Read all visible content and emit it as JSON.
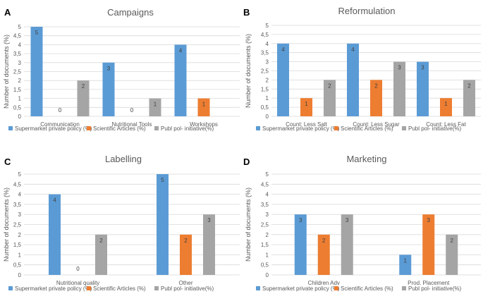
{
  "colors": {
    "supermarket": "#5b9bd5",
    "scientific": "#ed7d31",
    "public": "#a5a5a5",
    "grid": "#d9d9d9",
    "text": "#595959"
  },
  "chart_data": [
    {
      "panel": "A",
      "type": "bar",
      "title": "Campaigns",
      "ylabel": "Number of documents (%)",
      "ylim": [
        0,
        5
      ],
      "yticks": [
        "0",
        "0,5",
        "1",
        "1,5",
        "2",
        "2,5",
        "3",
        "3,5",
        "4",
        "4,5",
        "5"
      ],
      "categories": [
        "Communication",
        "Nutritional Tools",
        "Workshops"
      ],
      "series": [
        {
          "name": "Supermarket private policy (%)",
          "values": [
            5,
            3,
            4
          ]
        },
        {
          "name": "Scientific Articles (%)",
          "values": [
            0,
            0,
            1
          ]
        },
        {
          "name": "Publ pol- initiative(%)",
          "values": [
            2,
            1,
            null
          ]
        }
      ]
    },
    {
      "panel": "B",
      "type": "bar",
      "title": "Reformulation",
      "ylabel": "Number of documents (%)",
      "ylim": [
        0,
        5
      ],
      "yticks": [
        "0",
        "0,5",
        "1",
        "1,5",
        "2",
        "2,5",
        "3",
        "3,5",
        "4",
        "4,5",
        "5"
      ],
      "categories": [
        "Count: Less Salt",
        "Count: Less Sugar",
        "Count: Less Fat"
      ],
      "series": [
        {
          "name": "Supermarket private policy (%)",
          "values": [
            4,
            4,
            3
          ]
        },
        {
          "name": "Scientific Articles (%)",
          "values": [
            1,
            2,
            1
          ]
        },
        {
          "name": "Publ pol- initiative(%)",
          "values": [
            2,
            3,
            2
          ]
        }
      ]
    },
    {
      "panel": "C",
      "type": "bar",
      "title": "Labelling",
      "ylabel": "Number of documents (%)",
      "ylim": [
        0,
        5
      ],
      "yticks": [
        "0",
        "0,5",
        "1",
        "1,5",
        "2",
        "2,5",
        "3",
        "3,5",
        "4",
        "4,5",
        "5"
      ],
      "categories": [
        "Nutritional quality",
        "Other"
      ],
      "series": [
        {
          "name": "Supermarket private policy (%)",
          "values": [
            4,
            5
          ]
        },
        {
          "name": "Scientific Articles (%)",
          "values": [
            0,
            2
          ]
        },
        {
          "name": "Publ pol- initiative(%)",
          "values": [
            2,
            3
          ]
        }
      ]
    },
    {
      "panel": "D",
      "type": "bar",
      "title": "Marketing",
      "ylabel": "Number of documents (%)",
      "ylim": [
        0,
        5
      ],
      "yticks": [
        "0",
        "0,5",
        "1",
        "1,5",
        "2",
        "2,5",
        "3",
        "3,5",
        "4",
        "4,5",
        "5"
      ],
      "categories": [
        "Children Adv",
        "Prod. Placement"
      ],
      "series": [
        {
          "name": "Supermarket private policy (%)",
          "values": [
            3,
            1
          ]
        },
        {
          "name": "Scientific Articles (%)",
          "values": [
            2,
            3
          ]
        },
        {
          "name": "Publ pol- initiative(%)",
          "values": [
            3,
            2
          ]
        }
      ]
    }
  ]
}
